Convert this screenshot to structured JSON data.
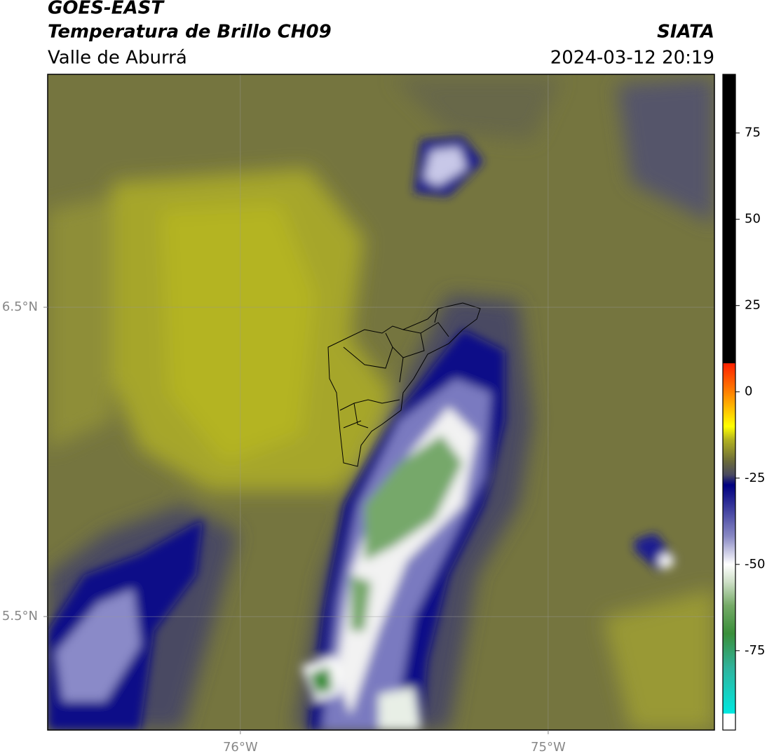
{
  "chart_data": {
    "type": "map",
    "title": "GOES-EAST",
    "subtitle": "Temperatura de Brillo CH09",
    "region": "Valle de Aburrá",
    "source": "SIATA",
    "datetime": "2024-03-12 20:19",
    "xlim": [
      -76.626,
      -74.46
    ],
    "ylim": [
      5.133,
      7.253
    ],
    "xticks": [
      {
        "value": -76,
        "label": "76°W"
      },
      {
        "value": -75,
        "label": "75°W"
      }
    ],
    "yticks": [
      {
        "value": 6.5,
        "label": "6.5°N"
      },
      {
        "value": 5.5,
        "label": "5.5°N"
      }
    ],
    "grid": true,
    "colorbar": {
      "lim": [
        -98,
        92
      ],
      "ticks": [
        75,
        50,
        25,
        0,
        -25,
        -50,
        -75
      ],
      "colorscale": [
        {
          "value": -98,
          "color": "#ffffff"
        },
        {
          "value": -93.2,
          "color": "#ffffff"
        },
        {
          "value": -93.2,
          "color": "#00e8e0"
        },
        {
          "value": -80,
          "color": "#2fb39c"
        },
        {
          "value": -70,
          "color": "#3a8f3a"
        },
        {
          "value": -62,
          "color": "#74aa66"
        },
        {
          "value": -55,
          "color": "#cfe0c8"
        },
        {
          "value": -50,
          "color": "#ffffff"
        },
        {
          "value": -42,
          "color": "#8a8ac4"
        },
        {
          "value": -33,
          "color": "#35359a"
        },
        {
          "value": -27,
          "color": "#000080"
        },
        {
          "value": -24,
          "color": "#4a4a60"
        },
        {
          "value": -20,
          "color": "#6c6c3a"
        },
        {
          "value": -14,
          "color": "#b0b020"
        },
        {
          "value": -10,
          "color": "#ffff00"
        },
        {
          "value": -5,
          "color": "#ffc000"
        },
        {
          "value": 0,
          "color": "#ff8000"
        },
        {
          "value": 8.3,
          "color": "#ff2000"
        },
        {
          "value": 8.3,
          "color": "#000000"
        },
        {
          "value": 92,
          "color": "#000000"
        }
      ]
    }
  }
}
